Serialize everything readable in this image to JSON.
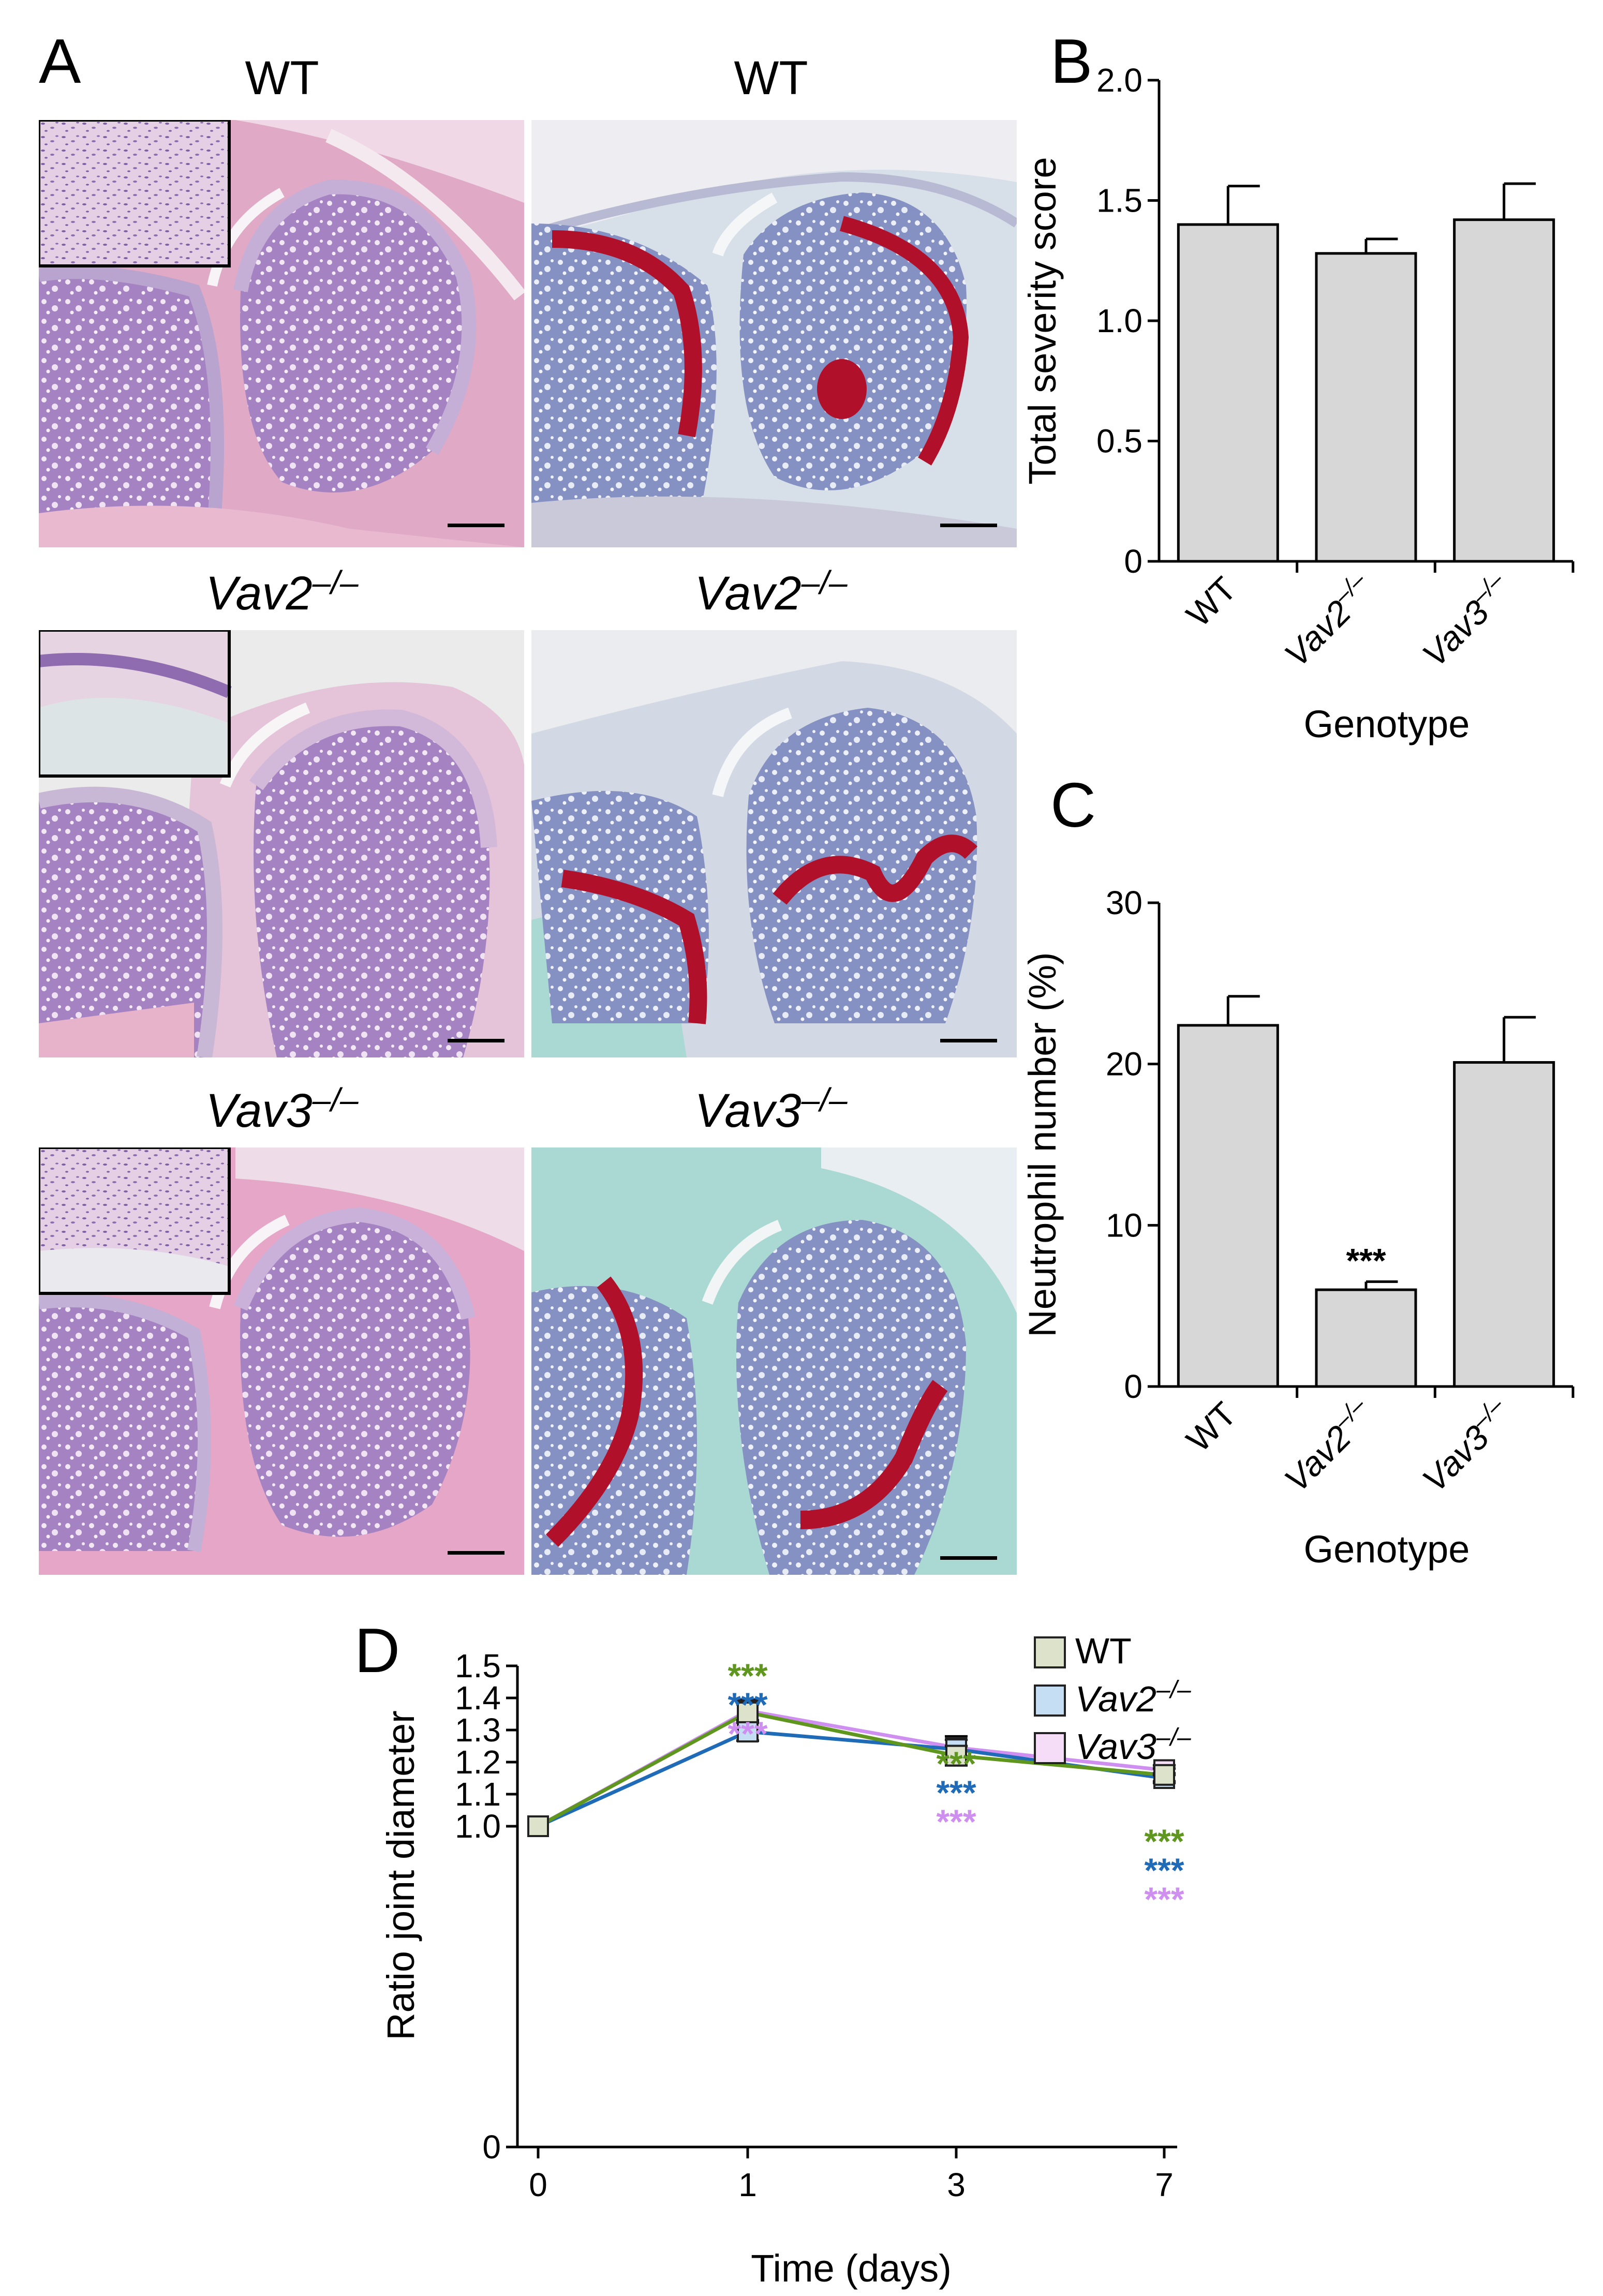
{
  "panels": {
    "A": {
      "letter": "A",
      "rows": [
        {
          "left_title": "WT",
          "right_title": "WT"
        },
        {
          "left_title_gene": "Vav2",
          "left_title_sup": "–/–",
          "right_title_gene": "Vav2",
          "right_title_sup": "–/–"
        },
        {
          "left_title_gene": "Vav3",
          "left_title_sup": "–/–",
          "right_title_gene": "Vav3",
          "right_title_sup": "–/–"
        }
      ]
    },
    "B": {
      "letter": "B"
    },
    "C": {
      "letter": "C"
    },
    "D": {
      "letter": "D"
    }
  },
  "colors": {
    "bar_fill": "#d7d7d7",
    "he_stain": "#d98fb7",
    "safranin_bg": "#a9d9d2",
    "safranin_red": "#b0102a",
    "wt_line": "#5f961e",
    "vav2_line": "#1f6bb8",
    "vav3_line": "#cf8ff0",
    "wt_marker": "#dde3cb",
    "vav2_marker": "#c6def3",
    "vav3_marker": "#f6ddf7"
  },
  "chart_data": [
    {
      "panel": "B",
      "type": "bar",
      "categories": [
        "WT",
        "Vav2–/–",
        "Vav3–/–"
      ],
      "category_parts": [
        {
          "main": "WT",
          "sup": "",
          "italic": false
        },
        {
          "main": "Vav2",
          "sup": "–/–",
          "italic": true
        },
        {
          "main": "Vav3",
          "sup": "–/–",
          "italic": true
        }
      ],
      "values": [
        1.4,
        1.28,
        1.42
      ],
      "errors": [
        0.16,
        0.06,
        0.15
      ],
      "ylabel": "Total severity score",
      "xlabel": "Genotype",
      "ylim": [
        0,
        2.0
      ],
      "yticks": [
        "0",
        "0.5",
        "1.0",
        "1.5",
        "2.0"
      ],
      "ytick_values": [
        0,
        0.5,
        1.0,
        1.5,
        2.0
      ],
      "annotations": [
        "",
        "",
        ""
      ]
    },
    {
      "panel": "C",
      "type": "bar",
      "categories": [
        "WT",
        "Vav2–/–",
        "Vav3–/–"
      ],
      "category_parts": [
        {
          "main": "WT",
          "sup": "",
          "italic": false
        },
        {
          "main": "Vav2",
          "sup": "–/–",
          "italic": true
        },
        {
          "main": "Vav3",
          "sup": "–/–",
          "italic": true
        }
      ],
      "values": [
        22.4,
        6.0,
        20.1
      ],
      "errors": [
        1.8,
        0.5,
        2.8
      ],
      "ylabel": "Neutrophil number (%)",
      "xlabel": "Genotype",
      "ylim": [
        0,
        30
      ],
      "yticks": [
        "0",
        "10",
        "20",
        "30"
      ],
      "ytick_values": [
        0,
        10,
        20,
        30
      ],
      "annotations": [
        "",
        "***",
        ""
      ]
    },
    {
      "panel": "D",
      "type": "line",
      "x": [
        "0",
        "1",
        "3",
        "7"
      ],
      "series": [
        {
          "name": "WT",
          "name_main": "WT",
          "name_sup": "",
          "italic": false,
          "values": [
            1.0,
            1.355,
            1.22,
            1.16
          ],
          "errors": [
            0,
            0.025,
            0.03,
            0.02
          ]
        },
        {
          "name": "Vav2–/–",
          "name_main": "Vav2",
          "name_sup": "–/–",
          "italic": true,
          "values": [
            1.0,
            1.295,
            1.24,
            1.15
          ],
          "errors": [
            0,
            0.028,
            0.03,
            0.015
          ]
        },
        {
          "name": "Vav3–/–",
          "name_main": "Vav3",
          "name_sup": "–/–",
          "italic": true,
          "values": [
            1.0,
            1.36,
            1.245,
            1.175
          ],
          "errors": [
            0,
            0.035,
            0.035,
            0.015
          ]
        }
      ],
      "significance": [
        "",
        "***",
        "***",
        "***"
      ],
      "xlabel": "Time (days)",
      "ylabel": "Ratio joint diameter",
      "ylim": [
        0,
        1.5
      ],
      "yticks": [
        "0",
        "1.0",
        "1.1",
        "1.2",
        "1.3",
        "1.4",
        "1.5"
      ],
      "ytick_values": [
        0,
        1.0,
        1.1,
        1.2,
        1.3,
        1.4,
        1.5
      ],
      "legend": "top-right"
    }
  ]
}
